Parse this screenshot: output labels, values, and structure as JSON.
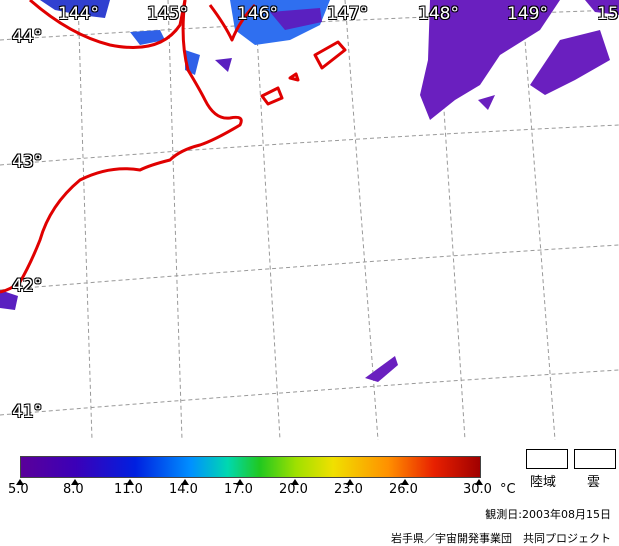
{
  "map": {
    "longitude_labels": [
      "144°",
      "145°",
      "146°",
      "147°",
      "148°",
      "149°",
      "15"
    ],
    "latitude_labels": [
      "44°",
      "43°",
      "42°",
      "41°"
    ],
    "colors": {
      "coastline": "#e00000",
      "grid": "#999999",
      "cloud": "#6a1fbf"
    }
  },
  "legend": {
    "scale_values": [
      "5.0",
      "8.0",
      "11.0",
      "14.0",
      "17.0",
      "20.0",
      "23.0",
      "26.0",
      "30.0"
    ],
    "unit": "°C",
    "land_label": "陸域",
    "cloud_label": "雲"
  },
  "footer": {
    "observation_date": "観測日:2003年08月15日",
    "credit": "岩手県／宇宙開発事業団　共同プロジェクト"
  }
}
